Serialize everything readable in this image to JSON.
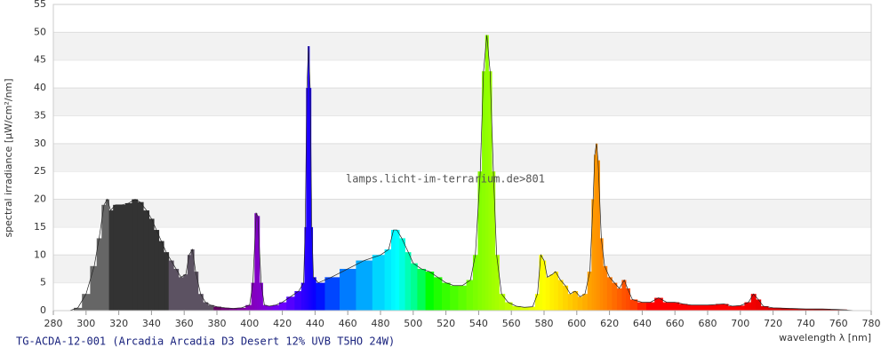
{
  "chart_data": {
    "type": "spectrum",
    "title": "TG-ACDA-12-001 (Arcadia Arcadia D3 Desert 12% UVB T5HO 24W)",
    "watermark": "lamps.licht-im-terrarium.de>801",
    "xlabel": "wavelength λ [nm]",
    "ylabel": "spectral irradiance [µW/cm²/nm]",
    "x": [
      290,
      295,
      300,
      305,
      308,
      311,
      313,
      315,
      318,
      322,
      326,
      330,
      333,
      337,
      340,
      343,
      346,
      349,
      352,
      355,
      358,
      361,
      363,
      365,
      367,
      370,
      373,
      376,
      380,
      385,
      390,
      395,
      400,
      402,
      404,
      405,
      407,
      409,
      412,
      416,
      420,
      425,
      430,
      433,
      434,
      435,
      436,
      437,
      438,
      439,
      442,
      450,
      460,
      470,
      480,
      485,
      488,
      490,
      493,
      497,
      500,
      505,
      510,
      515,
      520,
      525,
      530,
      535,
      538,
      541,
      543,
      545,
      547,
      549,
      551,
      554,
      558,
      563,
      568,
      573,
      576,
      578,
      580,
      582,
      585,
      587,
      590,
      593,
      596,
      599,
      602,
      605,
      608,
      610,
      611,
      612,
      613,
      615,
      617,
      620,
      623,
      626,
      629,
      631,
      634,
      640,
      645,
      650,
      655,
      660,
      665,
      670,
      680,
      690,
      695,
      700,
      705,
      708,
      711,
      714,
      720,
      730,
      740,
      750,
      760,
      770
    ],
    "values": [
      0,
      0.5,
      3,
      8,
      13,
      19,
      20,
      18,
      19,
      19,
      19.3,
      20,
      19.5,
      18,
      16.5,
      14.5,
      12.5,
      10.5,
      9,
      7.5,
      6,
      6.5,
      10,
      11,
      7,
      3,
      1.5,
      1,
      0.7,
      0.5,
      0.4,
      0.5,
      1,
      5,
      17.5,
      17,
      5,
      1,
      0.8,
      1,
      1.5,
      2.5,
      3.5,
      5,
      15,
      40,
      47.5,
      40,
      15,
      6,
      5,
      6,
      7.5,
      9,
      10,
      11,
      14.5,
      14.5,
      13,
      10.5,
      8.5,
      7.5,
      7,
      6,
      5,
      4.5,
      4.5,
      5.5,
      10,
      25,
      43,
      49.5,
      43,
      25,
      10,
      3,
      1.5,
      0.8,
      0.6,
      0.7,
      3,
      10,
      9,
      6,
      6.5,
      7,
      5.5,
      4.5,
      3,
      3.5,
      2.5,
      3,
      7,
      20,
      28,
      30,
      27,
      13,
      8,
      6,
      5,
      4,
      5.5,
      4,
      2,
      1.5,
      1.5,
      2.3,
      1.5,
      1.5,
      1.2,
      1,
      1,
      1.2,
      0.8,
      0.9,
      1.5,
      3,
      2,
      0.8,
      0.5,
      0.4,
      0.3,
      0.3,
      0.2,
      0
    ],
    "xlim": [
      280,
      780
    ],
    "ylim": [
      0,
      55
    ],
    "xticks": [
      280,
      300,
      320,
      340,
      360,
      380,
      400,
      420,
      440,
      460,
      480,
      500,
      520,
      540,
      560,
      580,
      600,
      620,
      640,
      660,
      680,
      700,
      720,
      740,
      760,
      780
    ],
    "yticks": [
      0,
      5,
      10,
      15,
      20,
      25,
      30,
      35,
      40,
      45,
      50,
      55
    ],
    "grid": true
  }
}
